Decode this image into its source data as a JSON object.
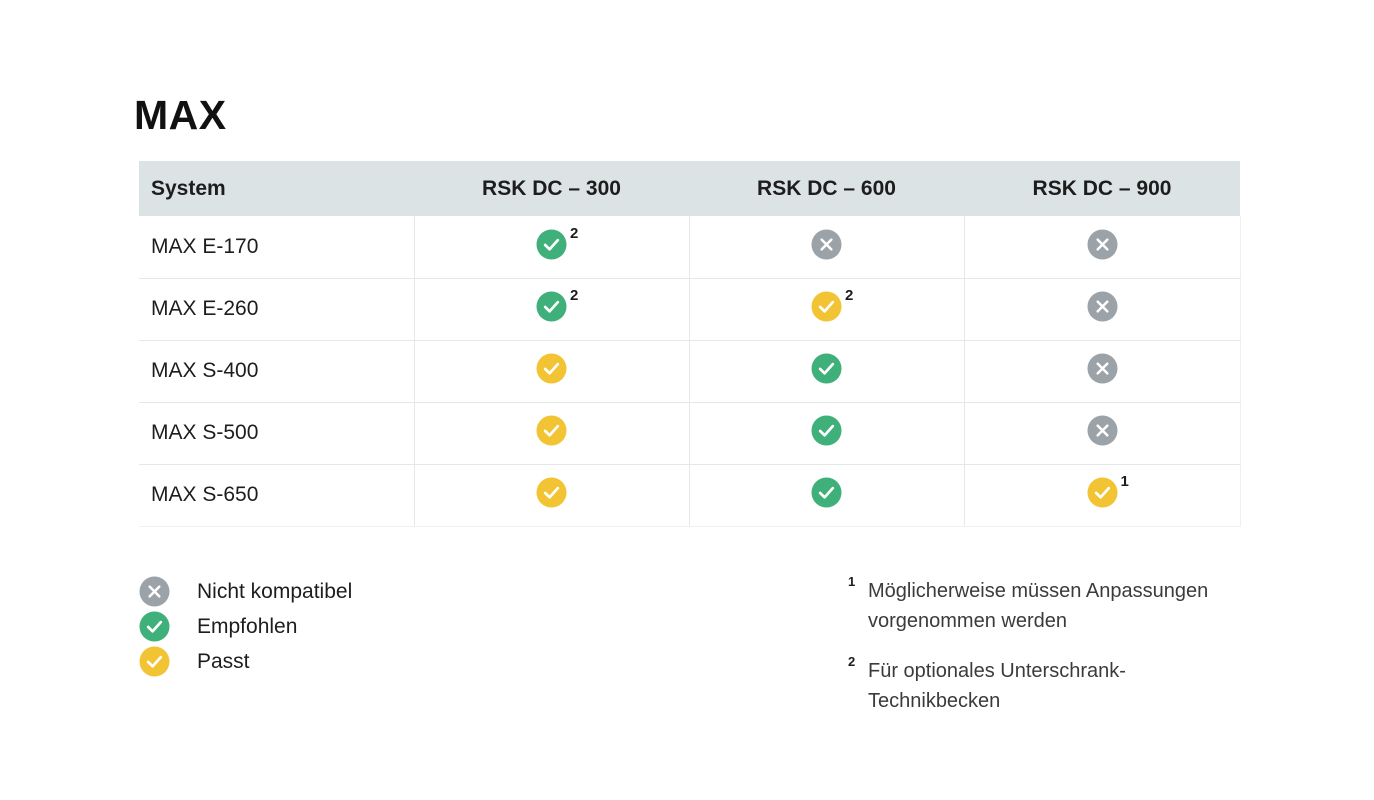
{
  "title": "MAX",
  "table": {
    "headers": [
      "System",
      "RSK DC – 300",
      "RSK DC – 600",
      "RSK DC – 900"
    ],
    "rows": [
      {
        "system": "MAX E-170",
        "cells": [
          {
            "status": "recommended",
            "note": "2"
          },
          {
            "status": "incompatible",
            "note": ""
          },
          {
            "status": "incompatible",
            "note": ""
          }
        ]
      },
      {
        "system": "MAX E-260",
        "cells": [
          {
            "status": "recommended",
            "note": "2"
          },
          {
            "status": "fits",
            "note": "2"
          },
          {
            "status": "incompatible",
            "note": ""
          }
        ]
      },
      {
        "system": "MAX S-400",
        "cells": [
          {
            "status": "fits",
            "note": ""
          },
          {
            "status": "recommended",
            "note": ""
          },
          {
            "status": "incompatible",
            "note": ""
          }
        ]
      },
      {
        "system": "MAX S-500",
        "cells": [
          {
            "status": "fits",
            "note": ""
          },
          {
            "status": "recommended",
            "note": ""
          },
          {
            "status": "incompatible",
            "note": ""
          }
        ]
      },
      {
        "system": "MAX S-650",
        "cells": [
          {
            "status": "fits",
            "note": ""
          },
          {
            "status": "recommended",
            "note": ""
          },
          {
            "status": "fits",
            "note": "1"
          }
        ]
      }
    ]
  },
  "legend": [
    {
      "status": "incompatible",
      "label": "Nicht kompatibel"
    },
    {
      "status": "recommended",
      "label": "Empfohlen"
    },
    {
      "status": "fits",
      "label": "Passt"
    }
  ],
  "footnotes": [
    {
      "num": "1",
      "text": "Möglicherweise müssen Anpassungen vorgenommen werden"
    },
    {
      "num": "2",
      "text": "Für optionales Unterschrank-Technikbecken"
    }
  ],
  "colors": {
    "recommended": "#3fb07a",
    "fits": "#f2c433",
    "incompatible": "#9ba2a8",
    "header_bg": "#dbe3e5"
  },
  "icons": {
    "recommended": "check-circle-icon",
    "fits": "check-circle-icon",
    "incompatible": "x-circle-icon"
  }
}
